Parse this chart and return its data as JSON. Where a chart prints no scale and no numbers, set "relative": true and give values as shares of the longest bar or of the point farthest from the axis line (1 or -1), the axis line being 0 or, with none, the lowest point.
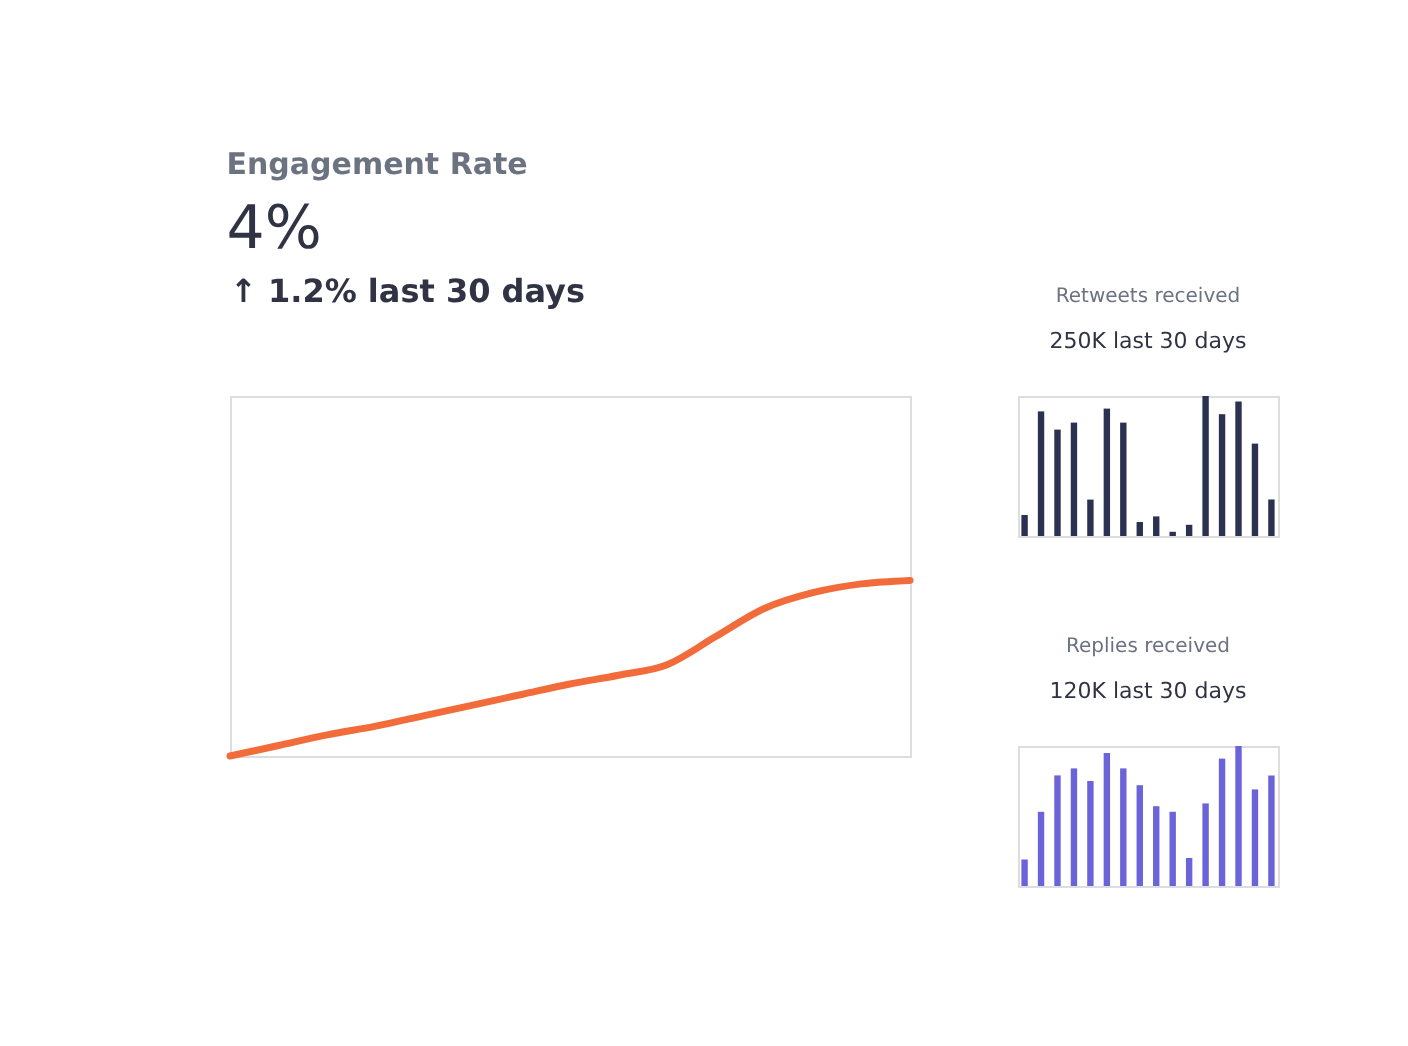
{
  "chart_data": [
    {
      "type": "line",
      "title": "Engagement Rate",
      "subtitle": "4%",
      "annotations": [
        "↑ 1.2% last 30 days"
      ],
      "categories": [
        null,
        null,
        null,
        null,
        null,
        null,
        null,
        null,
        null,
        null,
        null,
        null,
        null,
        null,
        null
      ],
      "values": [
        0,
        0.06,
        0.12,
        0.17,
        0.23,
        0.29,
        0.35,
        0.41,
        0.46,
        0.52,
        0.68,
        0.84,
        0.93,
        0.98,
        1.0
      ],
      "color": "#f26b3a",
      "relative": true
    },
    {
      "type": "bar",
      "title": "Retweets received",
      "subtitle": "250K last 30 days",
      "categories": [
        null,
        null,
        null,
        null,
        null,
        null,
        null,
        null,
        null,
        null,
        null,
        null,
        null,
        null,
        null,
        null
      ],
      "values": [
        0.15,
        0.89,
        0.76,
        0.81,
        0.26,
        0.91,
        0.81,
        0.1,
        0.14,
        0.03,
        0.08,
        1.0,
        0.87,
        0.96,
        0.66,
        0.26
      ],
      "color": "#2b3150",
      "relative": true
    },
    {
      "type": "bar",
      "title": "Replies received",
      "subtitle": "120K last 30 days",
      "categories": [
        null,
        null,
        null,
        null,
        null,
        null,
        null,
        null,
        null,
        null,
        null,
        null,
        null,
        null,
        null,
        null
      ],
      "values": [
        0.19,
        0.53,
        0.79,
        0.84,
        0.75,
        0.95,
        0.84,
        0.72,
        0.57,
        0.53,
        0.2,
        0.59,
        0.91,
        1.0,
        0.69,
        0.79
      ],
      "color": "#6a63d9",
      "relative": true
    }
  ]
}
